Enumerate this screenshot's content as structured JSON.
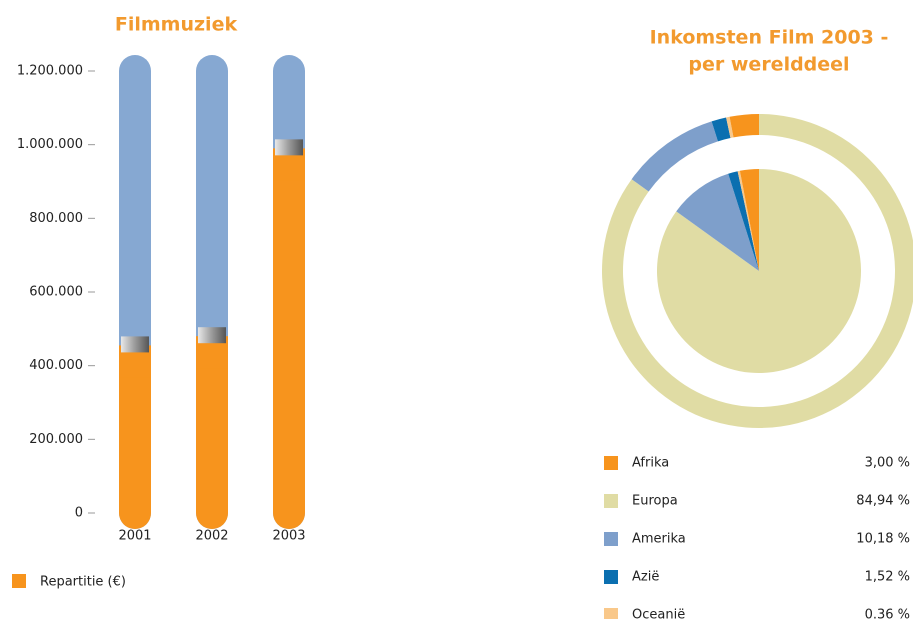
{
  "chart_data": [
    {
      "type": "bar",
      "title": "Filmmuziek",
      "categories": [
        "2001",
        "2002",
        "2003"
      ],
      "series": [
        {
          "name": "Repartitie (€)",
          "color": "#f7941d",
          "values": [
            455000,
            480000,
            990000
          ]
        }
      ],
      "ylim": [
        0,
        1200000
      ],
      "yticks": [
        0,
        {
          "value": 200000,
          "label": "200.000"
        },
        {
          "value": 400000,
          "label": "400.000"
        },
        {
          "value": 600000,
          "label": "600.000"
        },
        {
          "value": 800000,
          "label": "800.000"
        },
        {
          "value": 1000000,
          "label": "1.000.000"
        },
        {
          "value": 1200000,
          "label": "1.200.000"
        }
      ]
    },
    {
      "type": "pie",
      "title": [
        "Inkomsten Film 2003 -",
        "per werelddeel"
      ],
      "categories": [
        "Afrika",
        "Europa",
        "Amerika",
        "Azië",
        "Oceanië"
      ],
      "values": [
        3.0,
        84.94,
        10.18,
        1.52,
        0.36
      ],
      "value_labels": [
        "3,00 %",
        "84,94 %",
        "10,18 %",
        "1,52 %",
        "0.36 %"
      ],
      "colors": [
        "#f7941d",
        "#e0dca4",
        "#7e9fcb",
        "#0b6fb0",
        "#f9c88a"
      ]
    }
  ]
}
